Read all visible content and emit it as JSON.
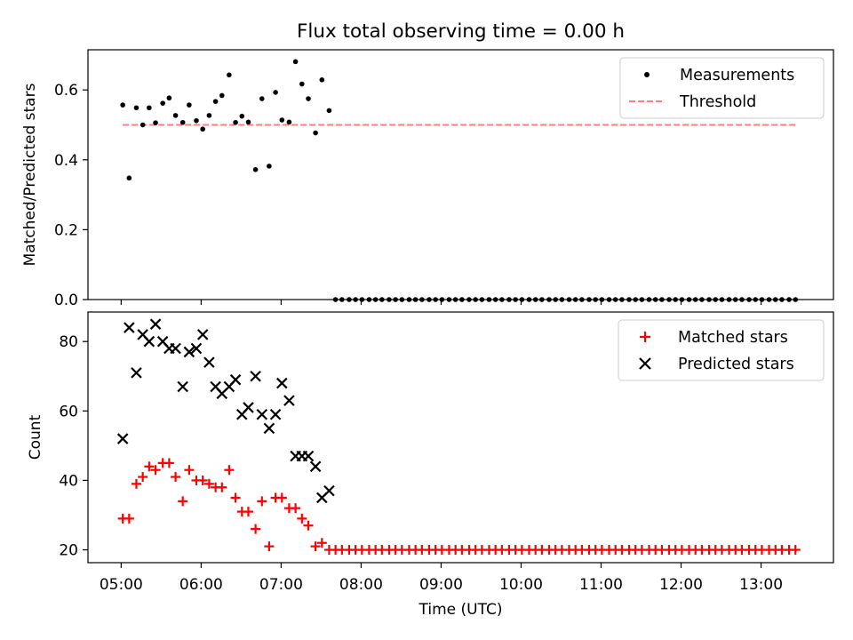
{
  "chart_data": [
    {
      "type": "scatter",
      "title": "Flux total observing time = 0.00 h",
      "xlabel": "",
      "ylabel": "Matched/Predicted stars",
      "xlim": [
        4.585,
        13.905
      ],
      "ylim": [
        0.0,
        0.715
      ],
      "yticks": [
        "0.0",
        "0.2",
        "0.4",
        "0.6"
      ],
      "legend_position": "top-right",
      "series": [
        {
          "name": "Measurements",
          "marker": "dot",
          "color": "#000000",
          "x": [
            5.02,
            5.1,
            5.19,
            5.27,
            5.35,
            5.43,
            5.52,
            5.6,
            5.68,
            5.77,
            5.85,
            5.94,
            6.02,
            6.1,
            6.18,
            6.26,
            6.35,
            6.43,
            6.51,
            6.59,
            6.68,
            6.76,
            6.85,
            6.93,
            7.01,
            7.1,
            7.18,
            7.26,
            7.34,
            7.43,
            7.51,
            7.6,
            7.68,
            7.76,
            7.85,
            7.93,
            8.01,
            8.1,
            8.18,
            8.26,
            8.35,
            8.43,
            8.51,
            8.6,
            8.68,
            8.76,
            8.85,
            8.93,
            9.01,
            9.1,
            9.18,
            9.26,
            9.35,
            9.43,
            9.51,
            9.6,
            9.68,
            9.76,
            9.85,
            9.93,
            10.01,
            10.1,
            10.18,
            10.26,
            10.35,
            10.43,
            10.51,
            10.6,
            10.68,
            10.76,
            10.85,
            10.93,
            11.01,
            11.1,
            11.18,
            11.26,
            11.35,
            11.43,
            11.51,
            11.6,
            11.68,
            11.76,
            11.85,
            11.93,
            12.01,
            12.1,
            12.18,
            12.26,
            12.35,
            12.43,
            12.51,
            12.6,
            12.68,
            12.76,
            12.85,
            12.93,
            13.01,
            13.1,
            13.18,
            13.26,
            13.35,
            13.43
          ],
          "y": [
            0.557,
            0.348,
            0.549,
            0.5,
            0.549,
            0.506,
            0.562,
            0.577,
            0.527,
            0.507,
            0.557,
            0.512,
            0.488,
            0.527,
            0.567,
            0.584,
            0.643,
            0.507,
            0.525,
            0.508,
            0.372,
            0.575,
            0.382,
            0.593,
            0.514,
            0.508,
            0.681,
            0.617,
            0.575,
            0.477,
            0.629,
            0.541,
            0.0,
            0.0,
            0.0,
            0.0,
            0.0,
            0.0,
            0.0,
            0.0,
            0.0,
            0.0,
            0.0,
            0.0,
            0.0,
            0.0,
            0.0,
            0.0,
            0.0,
            0.0,
            0.0,
            0.0,
            0.0,
            0.0,
            0.0,
            0.0,
            0.0,
            0.0,
            0.0,
            0.0,
            0.0,
            0.0,
            0.0,
            0.0,
            0.0,
            0.0,
            0.0,
            0.0,
            0.0,
            0.0,
            0.0,
            0.0,
            0.0,
            0.0,
            0.0,
            0.0,
            0.0,
            0.0,
            0.0,
            0.0,
            0.0,
            0.0,
            0.0,
            0.0,
            0.0,
            0.0,
            0.0,
            0.0,
            0.0,
            0.0,
            0.0,
            0.0,
            0.0,
            0.0,
            0.0,
            0.0,
            0.0,
            0.0,
            0.0,
            0.0,
            0.0,
            0.0
          ]
        },
        {
          "name": "Threshold",
          "marker": "dashed-line",
          "color": "#ff7f7f",
          "x": [
            5.02,
            13.43
          ],
          "y": [
            0.5,
            0.5
          ]
        }
      ]
    },
    {
      "type": "scatter",
      "title": "",
      "xlabel": "Time (UTC)",
      "ylabel": "Count",
      "xlim": [
        4.585,
        13.905
      ],
      "ylim": [
        16.3,
        88.5
      ],
      "yticks": [
        "20",
        "40",
        "60",
        "80"
      ],
      "xticks": [
        {
          "value": 5,
          "label": "05:00"
        },
        {
          "value": 6,
          "label": "06:00"
        },
        {
          "value": 7,
          "label": "07:00"
        },
        {
          "value": 8,
          "label": "08:00"
        },
        {
          "value": 9,
          "label": "09:00"
        },
        {
          "value": 10,
          "label": "10:00"
        },
        {
          "value": 11,
          "label": "11:00"
        },
        {
          "value": 12,
          "label": "12:00"
        },
        {
          "value": 13,
          "label": "13:00"
        }
      ],
      "legend_position": "top-right",
      "series": [
        {
          "name": "Matched stars",
          "marker": "plus",
          "color": "#ff0000",
          "x": [
            5.02,
            5.1,
            5.19,
            5.27,
            5.35,
            5.43,
            5.52,
            5.6,
            5.68,
            5.77,
            5.85,
            5.94,
            6.02,
            6.1,
            6.18,
            6.26,
            6.35,
            6.43,
            6.51,
            6.59,
            6.68,
            6.76,
            6.85,
            6.93,
            7.01,
            7.1,
            7.18,
            7.26,
            7.34,
            7.43,
            7.51,
            7.6,
            7.68,
            7.76,
            7.85,
            7.93,
            8.01,
            8.1,
            8.18,
            8.26,
            8.35,
            8.43,
            8.51,
            8.6,
            8.68,
            8.76,
            8.85,
            8.93,
            9.01,
            9.1,
            9.18,
            9.26,
            9.35,
            9.43,
            9.51,
            9.6,
            9.68,
            9.76,
            9.85,
            9.93,
            10.01,
            10.1,
            10.18,
            10.26,
            10.35,
            10.43,
            10.51,
            10.6,
            10.68,
            10.76,
            10.85,
            10.93,
            11.01,
            11.1,
            11.18,
            11.26,
            11.35,
            11.43,
            11.51,
            11.6,
            11.68,
            11.76,
            11.85,
            11.93,
            12.01,
            12.1,
            12.18,
            12.26,
            12.35,
            12.43,
            12.51,
            12.6,
            12.68,
            12.76,
            12.85,
            12.93,
            13.01,
            13.1,
            13.18,
            13.26,
            13.35,
            13.43
          ],
          "y": [
            29,
            29,
            39,
            41,
            44,
            43,
            45,
            45,
            41,
            34,
            43,
            40,
            40,
            39,
            38,
            38,
            43,
            35,
            31,
            31,
            26,
            34,
            21,
            35,
            35,
            32,
            32,
            29,
            27,
            21,
            22,
            20,
            20,
            20,
            20,
            20,
            20,
            20,
            20,
            20,
            20,
            20,
            20,
            20,
            20,
            20,
            20,
            20,
            20,
            20,
            20,
            20,
            20,
            20,
            20,
            20,
            20,
            20,
            20,
            20,
            20,
            20,
            20,
            20,
            20,
            20,
            20,
            20,
            20,
            20,
            20,
            20,
            20,
            20,
            20,
            20,
            20,
            20,
            20,
            20,
            20,
            20,
            20,
            20,
            20,
            20,
            20,
            20,
            20,
            20,
            20,
            20,
            20,
            20,
            20,
            20,
            20,
            20,
            20,
            20,
            20,
            20
          ]
        },
        {
          "name": "Predicted stars",
          "marker": "x",
          "color": "#000000",
          "x": [
            5.02,
            5.1,
            5.19,
            5.27,
            5.35,
            5.43,
            5.52,
            5.6,
            5.68,
            5.77,
            5.85,
            5.94,
            6.02,
            6.1,
            6.18,
            6.26,
            6.35,
            6.43,
            6.51,
            6.59,
            6.68,
            6.76,
            6.85,
            6.93,
            7.01,
            7.1,
            7.18,
            7.26,
            7.34,
            7.43,
            7.51,
            7.6
          ],
          "y": [
            52,
            84,
            71,
            82,
            80,
            85,
            80,
            78,
            78,
            67,
            77,
            78,
            82,
            74,
            67,
            65,
            67,
            69,
            59,
            61,
            70,
            59,
            55,
            59,
            68,
            63,
            47,
            47,
            47,
            44,
            35,
            37
          ]
        }
      ]
    }
  ]
}
